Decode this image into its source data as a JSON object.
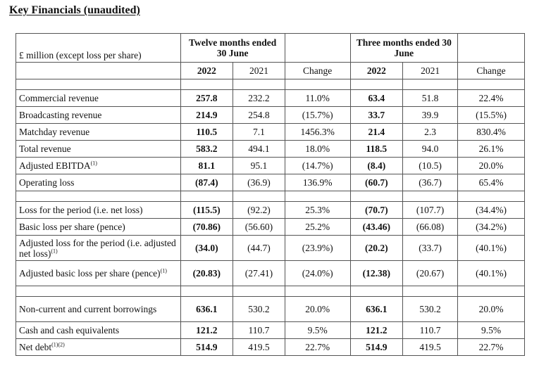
{
  "title": "Key Financials (unaudited)",
  "header": {
    "unit_label": "£ million (except loss per share)",
    "group1": "Twelve months ended 30 June",
    "group2": "Three months ended 30 June",
    "col_2022": "2022",
    "col_2021": "2021",
    "col_change": "Change"
  },
  "sections": [
    {
      "rows": [
        {
          "label": "Commercial revenue",
          "sup": "",
          "v": [
            "257.8",
            "232.2",
            "11.0%",
            "63.4",
            "51.8",
            "22.4%"
          ]
        },
        {
          "label": "Broadcasting revenue",
          "sup": "",
          "v": [
            "214.9",
            "254.8",
            "(15.7%)",
            "33.7",
            "39.9",
            "(15.5%)"
          ]
        },
        {
          "label": "Matchday revenue",
          "sup": "",
          "v": [
            "110.5",
            "7.1",
            "1456.3%",
            "21.4",
            "2.3",
            "830.4%"
          ]
        },
        {
          "label": "Total revenue",
          "sup": "",
          "v": [
            "583.2",
            "494.1",
            "18.0%",
            "118.5",
            "94.0",
            "26.1%"
          ]
        },
        {
          "label": "Adjusted EBITDA",
          "sup": "(1)",
          "v": [
            "81.1",
            "95.1",
            "(14.7%)",
            "(8.4)",
            "(10.5)",
            "20.0%"
          ]
        },
        {
          "label": "Operating loss",
          "sup": "",
          "v": [
            "(87.4)",
            "(36.9)",
            "136.9%",
            "(60.7)",
            "(36.7)",
            "65.4%"
          ]
        }
      ]
    },
    {
      "rows": [
        {
          "label": "Loss for the period (i.e. net loss)",
          "sup": "",
          "v": [
            "(115.5)",
            "(92.2)",
            "25.3%",
            "(70.7)",
            "(107.7)",
            "(34.4%)"
          ]
        },
        {
          "label": "Basic loss per share (pence)",
          "sup": "",
          "v": [
            "(70.86)",
            "(56.60)",
            "25.2%",
            "(43.46)",
            "(66.08)",
            "(34.2%)"
          ]
        },
        {
          "label": "Adjusted loss for the period (i.e. adjusted net loss)",
          "sup": "(1)",
          "tall": true,
          "v": [
            "(34.0)",
            "(44.7)",
            "(23.9%)",
            "(20.2)",
            "(33.7)",
            "(40.1%)"
          ]
        },
        {
          "label": "Adjusted basic loss per share (pence)",
          "sup": "(1)",
          "tall": true,
          "v": [
            "(20.83)",
            "(27.41)",
            "(24.0%)",
            "(12.38)",
            "(20.67)",
            "(40.1%)"
          ]
        }
      ]
    },
    {
      "rows": [
        {
          "label": "Non-current and current borrowings",
          "sup": "",
          "tall": true,
          "v": [
            "636.1",
            "530.2",
            "20.0%",
            "636.1",
            "530.2",
            "20.0%"
          ]
        },
        {
          "label": "Cash and cash equivalents",
          "sup": "",
          "v": [
            "121.2",
            "110.7",
            "9.5%",
            "121.2",
            "110.7",
            "9.5%"
          ]
        },
        {
          "label": "Net debt",
          "sup": "(1)(2)",
          "v": [
            "514.9",
            "419.5",
            "22.7%",
            "514.9",
            "419.5",
            "22.7%"
          ]
        }
      ]
    }
  ]
}
